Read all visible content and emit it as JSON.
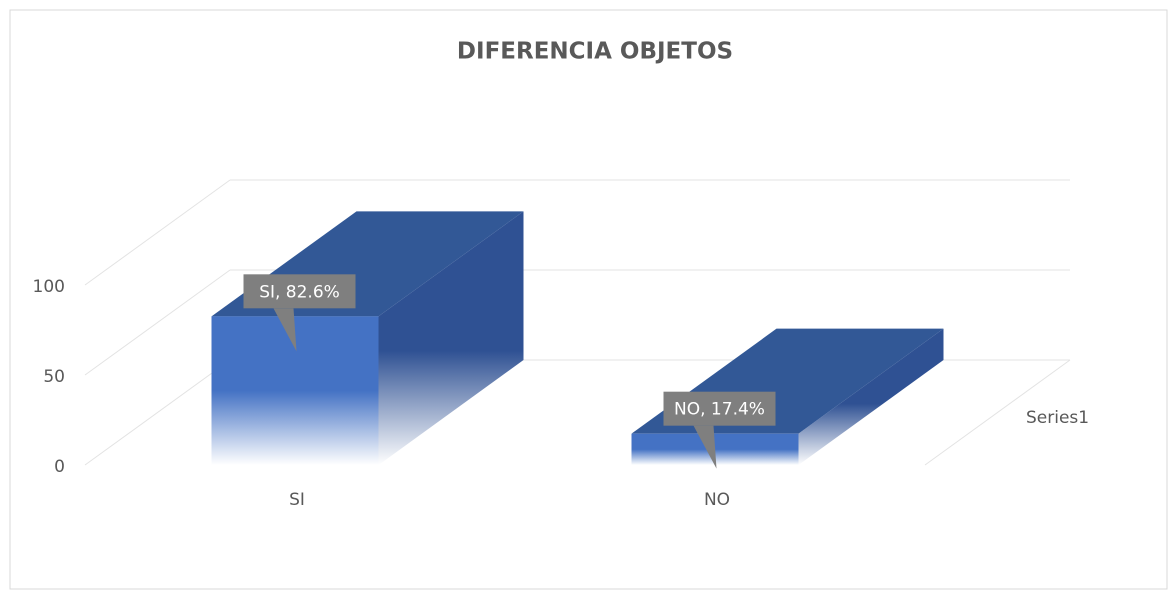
{
  "chart_data": {
    "type": "bar3d",
    "title": "DIFERENCIA OBJETOS",
    "categories": [
      "SI",
      "NO"
    ],
    "series": [
      {
        "name": "Series1",
        "color": "#4472c4",
        "values": [
          82.6,
          17.4
        ],
        "value_labels": [
          "SI, 82.6%",
          "NO, 17.4%"
        ]
      }
    ],
    "ylim": [
      0,
      100
    ],
    "yticks": [
      0,
      50,
      100
    ],
    "grid": true
  }
}
